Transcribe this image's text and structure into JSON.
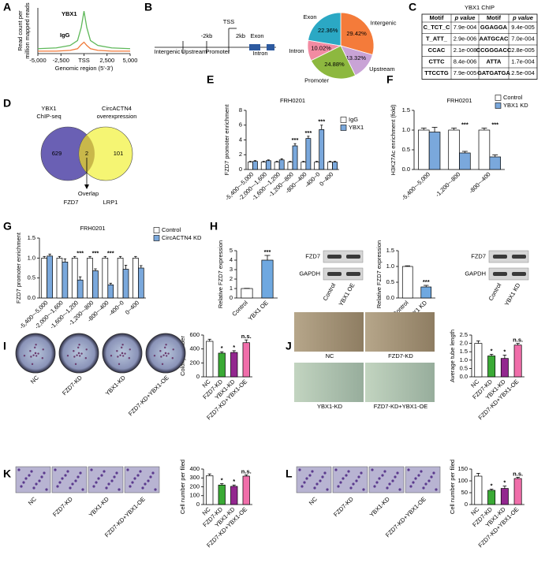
{
  "panel_labels": [
    "A",
    "B",
    "C",
    "D",
    "E",
    "F",
    "G",
    "H",
    "I",
    "J",
    "K",
    "L"
  ],
  "chart_data": [
    {
      "type": "line",
      "xlabel": "Genomic region (5'-3')",
      "ylabel": [
        "Read count per",
        "million mapped reads"
      ],
      "x": [
        -5000,
        -3000,
        -1500,
        -700,
        -300,
        0,
        300,
        700,
        1500,
        3000,
        5000
      ],
      "series": [
        {
          "name": "YBX1",
          "color": "#5fb85a",
          "values": [
            0.3,
            0.35,
            0.5,
            0.8,
            1.6,
            2.6,
            1.6,
            0.8,
            0.5,
            0.35,
            0.3
          ]
        },
        {
          "name": "IgG",
          "color": "#f07a3a",
          "values": [
            0.15,
            0.15,
            0.2,
            0.3,
            0.55,
            0.7,
            0.5,
            0.3,
            0.2,
            0.15,
            0.15
          ]
        }
      ],
      "xlim": [
        -5000,
        5000
      ],
      "ylim": [
        0,
        2.8
      ],
      "xticks": [
        {
          "value": -5000,
          "label": "-5,000"
        },
        {
          "value": -2500,
          "label": "-2,500"
        },
        {
          "value": 0,
          "label": "TSS"
        },
        {
          "value": 2500,
          "label": "2,500"
        },
        {
          "value": 5000,
          "label": "5,000"
        }
      ]
    },
    {
      "type": "pie",
      "categories": [
        "Intergenic",
        "Upstream",
        "Promoter",
        "Intron",
        "Exon"
      ],
      "values": [
        29.42,
        13.32,
        24.88,
        10.02,
        22.36
      ],
      "value_labels": [
        "29.42%",
        "13.32%",
        "24.88%",
        "10.02%",
        "22.36%"
      ],
      "colors": [
        "#f47b3a",
        "#c9a3d6",
        "#8db83f",
        "#f28ba2",
        "#2ba8c4"
      ]
    },
    {
      "type": "bar",
      "title": "FRH0201",
      "ylabel": "FZD7 promoter enrichment",
      "categories": [
        "-5,400~-5,000",
        "-2,000~-1,600",
        "-1,600~-1,200",
        "-1,200~-800",
        "-800~-400",
        "-400~0",
        "0~400"
      ],
      "series": [
        {
          "name": "IgG",
          "color": "#ffffff",
          "values": [
            1,
            1,
            1,
            1,
            1,
            1,
            1
          ],
          "errors": [
            0.1,
            0.1,
            0.1,
            0.1,
            0.1,
            0.1,
            0.1
          ]
        },
        {
          "name": "YBX1",
          "color": "#7aa8dc",
          "values": [
            1.1,
            1.2,
            1.3,
            3.2,
            4.2,
            5.4,
            1.0
          ],
          "errors": [
            0.1,
            0.1,
            0.15,
            0.3,
            0.3,
            0.6,
            0.1
          ]
        }
      ],
      "significance": [
        null,
        null,
        null,
        "***",
        "***",
        "***",
        null
      ],
      "ylim": [
        0,
        8
      ],
      "yticks": [
        0,
        2,
        4,
        6,
        8
      ]
    },
    {
      "type": "bar",
      "title": "FRH0201",
      "ylabel": "H3K27Ac enrichment (fold)",
      "categories": [
        "-5,400~-5,000",
        "-1,200~-800",
        "-800~-400"
      ],
      "series": [
        {
          "name": "Control",
          "color": "#ffffff",
          "values": [
            1.0,
            1.0,
            1.0
          ],
          "errors": [
            0.05,
            0.05,
            0.05
          ]
        },
        {
          "name": "YBX1 KD",
          "color": "#7aa8dc",
          "values": [
            0.95,
            0.42,
            0.32
          ],
          "errors": [
            0.12,
            0.04,
            0.05
          ]
        }
      ],
      "significance": [
        null,
        "***",
        "***"
      ],
      "ylim": [
        0,
        1.5
      ],
      "yticks": [
        {
          "value": 0,
          "label": "0.0"
        },
        0.5,
        {
          "value": 1,
          "label": "1.0"
        },
        1.5
      ]
    },
    {
      "type": "bar",
      "title": "FRH0201",
      "ylabel": "FZD7 promoter enrichment",
      "categories": [
        "-5,400~-5,000",
        "-2,000~-1,600",
        "-1,600~-1,200",
        "-1,200~-800",
        "-800~-400",
        "-400~0",
        "0~400"
      ],
      "series": [
        {
          "name": "Control",
          "color": "#ffffff",
          "values": [
            1,
            1,
            1,
            1,
            1,
            1,
            1
          ],
          "errors": [
            0.04,
            0.04,
            0.04,
            0.04,
            0.04,
            0.04,
            0.04
          ]
        },
        {
          "name": "CircACTN4 KD",
          "color": "#7aa8dc",
          "values": [
            1.05,
            0.9,
            0.45,
            0.68,
            0.33,
            0.72,
            0.75
          ],
          "errors": [
            0.05,
            0.08,
            0.08,
            0.05,
            0.04,
            0.1,
            0.06
          ]
        }
      ],
      "significance": [
        null,
        null,
        "***",
        "***",
        "***",
        null,
        null
      ],
      "ylim": [
        0,
        1.5
      ],
      "yticks": [
        {
          "value": 0,
          "label": "0.0"
        },
        0.5,
        {
          "value": 1,
          "label": "1.0"
        },
        1.5
      ]
    },
    {
      "type": "bar",
      "ylabel": "Relative FZD7 expression",
      "categories": [
        "Control",
        "YBX1 OE"
      ],
      "values": [
        1,
        4
      ],
      "errors": [
        0.02,
        0.5
      ],
      "colors": [
        "#ffffff",
        "#6fa8e0"
      ],
      "significance": [
        null,
        "***"
      ],
      "ylim": [
        0,
        5
      ],
      "yticks": [
        0,
        1,
        2,
        3,
        4,
        5
      ]
    },
    {
      "type": "bar",
      "ylabel": "Relative FZD7 expression",
      "categories": [
        "Control",
        "YBX1 KD"
      ],
      "values": [
        1,
        0.35
      ],
      "errors": [
        0.02,
        0.05
      ],
      "colors": [
        "#ffffff",
        "#6fa8e0"
      ],
      "significance": [
        null,
        "***"
      ],
      "ylim": [
        0,
        1.5
      ],
      "yticks": [
        {
          "value": 0,
          "label": "0.0"
        },
        0.5,
        {
          "value": 1,
          "label": "1.0"
        },
        1.5
      ]
    },
    {
      "type": "bar",
      "ylabel": "Colony number",
      "categories": [
        "NC",
        "FZD7-KD",
        "YBX1-KD",
        "FZD7-KD+YBX1-OE"
      ],
      "values": [
        510,
        340,
        350,
        490
      ],
      "errors": [
        30,
        20,
        25,
        40
      ],
      "colors": [
        "#ffffff",
        "#3aaa35",
        "#93278f",
        "#f06eaa"
      ],
      "significance": [
        null,
        "*",
        "*",
        "n.s."
      ],
      "ylim": [
        0,
        600
      ],
      "yticks": [
        0,
        200,
        400,
        600
      ]
    },
    {
      "type": "bar",
      "ylabel": "Average tube length",
      "categories": [
        "NC",
        "FZD7-KD",
        "YBX1-KD",
        "FZD7-KD+YBX1-OE"
      ],
      "values": [
        2.0,
        1.25,
        1.1,
        1.9
      ],
      "errors": [
        0.15,
        0.1,
        0.2,
        0.1
      ],
      "colors": [
        "#ffffff",
        "#3aaa35",
        "#93278f",
        "#f06eaa"
      ],
      "significance": [
        null,
        "*",
        "*",
        "n.s."
      ],
      "ylim": [
        0,
        2.5
      ],
      "yticks": [
        {
          "value": 0,
          "label": "0.0"
        },
        0.5,
        {
          "value": 1,
          "label": "1.0"
        },
        1.5,
        {
          "value": 2,
          "label": "2.0"
        },
        2.5
      ]
    },
    {
      "type": "bar",
      "ylabel": "Cell number per filed",
      "categories": [
        "NC",
        "FZD7-KD",
        "YBX1-KD",
        "FZD7-KD+YBX1-OE"
      ],
      "values": [
        325,
        220,
        205,
        320
      ],
      "errors": [
        20,
        15,
        15,
        15
      ],
      "colors": [
        "#ffffff",
        "#3aaa35",
        "#93278f",
        "#f06eaa"
      ],
      "significance": [
        null,
        "*",
        "*",
        "n.s."
      ],
      "ylim": [
        0,
        400
      ],
      "yticks": [
        0,
        100,
        200,
        300,
        400
      ]
    },
    {
      "type": "bar",
      "ylabel": "Cell number per filed",
      "categories": [
        "NC",
        "FZD7-KD",
        "YBX1-KD",
        "FZD7-KD+YBX1-OE"
      ],
      "values": [
        120,
        60,
        68,
        110
      ],
      "errors": [
        12,
        5,
        10,
        5
      ],
      "colors": [
        "#ffffff",
        "#3aaa35",
        "#93278f",
        "#f06eaa"
      ],
      "significance": [
        null,
        "*",
        "*",
        "n.s."
      ],
      "ylim": [
        0,
        150
      ],
      "yticks": [
        0,
        50,
        100,
        150
      ]
    }
  ],
  "gene_structure": [
    "Intergenic",
    "Upstream",
    "-2kb",
    "Promoter",
    "TSS",
    "2kb",
    "Exon",
    "Intron"
  ],
  "motif_table": {
    "title": "YBX1 ChIP",
    "header": [
      "Motif",
      "p value",
      "Motif",
      "p value"
    ],
    "rows": [
      [
        "C_TCT_C",
        "7.9e-004",
        "GGAGGA",
        "9.4e-005"
      ],
      [
        "T_ATT_",
        "2.9e-006",
        "AATGCAC",
        "7.0e-004"
      ],
      [
        "CCAC",
        "2.1e-008",
        "CCGGGACC",
        "2.8e-005"
      ],
      [
        "CTTC",
        "8.4e-006",
        "ATTA",
        "1.7e-004"
      ],
      [
        "TTCCTG",
        "7.9e-005",
        "GATGATGA",
        "2.5e-004"
      ]
    ]
  },
  "venn": {
    "sets": [
      [
        "YBX1",
        "ChIP-seq"
      ],
      [
        "CircACTN4",
        "overexpression"
      ]
    ],
    "counts": [
      629,
      2,
      101
    ],
    "overlap_label": "Overlap",
    "genes": [
      "FZD7",
      "LRP1"
    ]
  },
  "blots": [
    {
      "bands": [
        "FZD7",
        "GAPDH"
      ],
      "lanes": [
        "Control",
        "YBX1 OE"
      ]
    },
    {
      "bands": [
        "FZD7",
        "GAPDH"
      ],
      "lanes": [
        "Control",
        "YBX1 KD"
      ]
    }
  ],
  "images": {
    "I": [
      "NC",
      "FZD7-KD",
      "YBX1-KD",
      "FZD7-KD+YBX1-OE"
    ],
    "J": [
      "NC",
      "FZD7-KD",
      "YBX1-KD",
      "FZD7-KD+YBX1-OE"
    ],
    "K": [
      "NC",
      "FZD7-KD",
      "YBX1-KD",
      "FZD7-KD+YBX1-OE"
    ],
    "L": [
      "NC",
      "FZD7-KD",
      "YBX1-KD",
      "FZD7-KD+YBX1-OE"
    ]
  }
}
